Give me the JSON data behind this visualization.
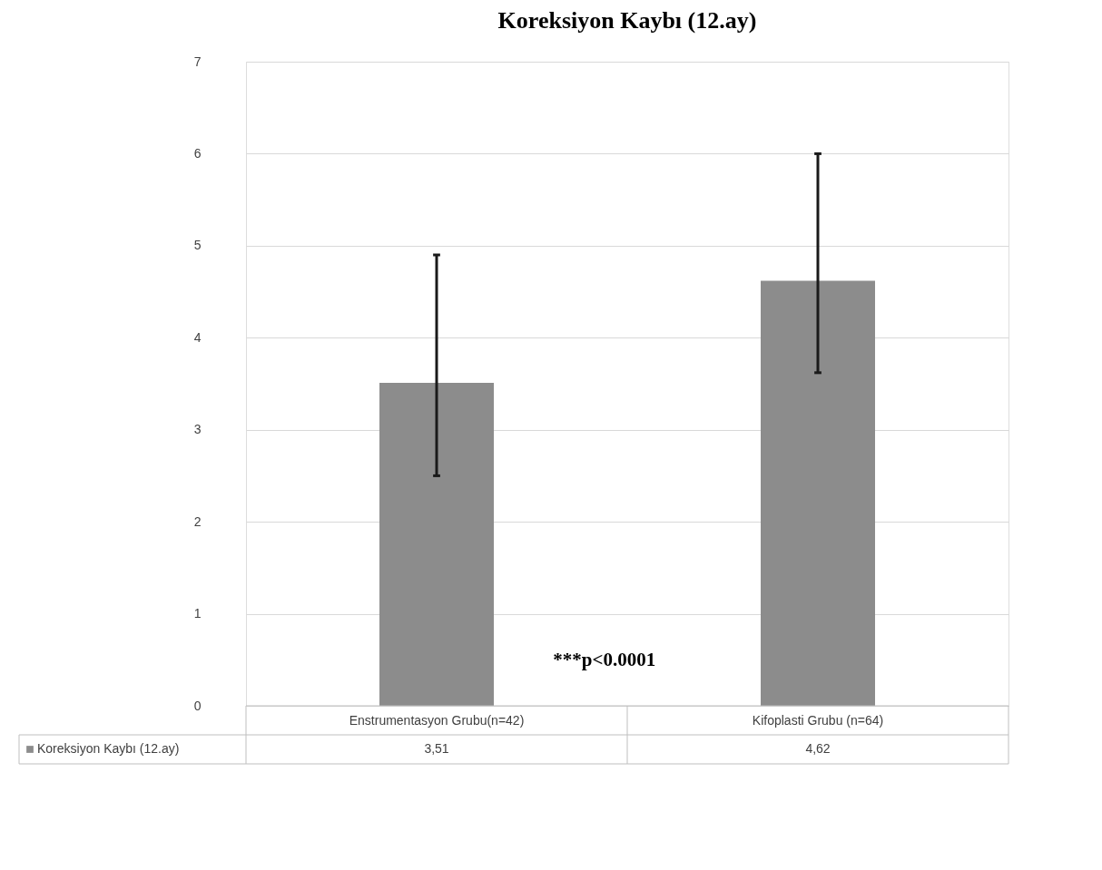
{
  "chart_data": {
    "type": "bar",
    "title": "Koreksiyon Kaybı (12.ay)",
    "categories": [
      "Enstrumentasyon Grubu(n=42)",
      "Kifoplasti Grubu (n=64)"
    ],
    "series": [
      {
        "name": "Koreksiyon Kaybı (12.ay)",
        "color": "#8c8c8c",
        "values": [
          3.51,
          4.62
        ],
        "value_labels": [
          "3,51",
          "4,62"
        ],
        "errors": [
          [
            2.5,
            4.9
          ],
          [
            3.62,
            6.0
          ]
        ]
      }
    ],
    "ylim": [
      0,
      7
    ],
    "yticks": [
      0,
      1,
      2,
      3,
      4,
      5,
      6,
      7
    ],
    "grid": "y",
    "legend": "bottom",
    "annotations": [
      "***p<0.0001"
    ]
  }
}
